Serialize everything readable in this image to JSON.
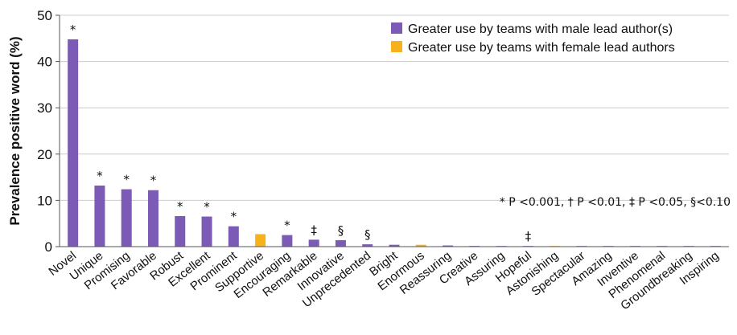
{
  "chart_data": {
    "type": "bar",
    "ylabel": "Prevalence positive word (%)",
    "ylim": [
      0,
      50
    ],
    "yticks": [
      0,
      10,
      20,
      30,
      40,
      50
    ],
    "grid": true,
    "legend_position": "top-right",
    "categories": [
      "Novel",
      "Unique",
      "Promising",
      "Favorable",
      "Robust",
      "Excellent",
      "Prominent",
      "Supportive",
      "Encouraging",
      "Remarkable",
      "Innovative",
      "Unprecedented",
      "Bright",
      "Enormous",
      "Reassuring",
      "Creative",
      "Assuring",
      "Hopeful",
      "Astonishing",
      "Spectacular",
      "Amazing",
      "Inventive",
      "Phenomenal",
      "Groundbreaking",
      "Inspiring"
    ],
    "values": [
      44.8,
      13.2,
      12.4,
      12.2,
      6.6,
      6.5,
      4.4,
      2.7,
      2.5,
      1.5,
      1.4,
      0.5,
      0.4,
      0.4,
      0.25,
      0.15,
      0.12,
      0.1,
      0.1,
      0.08,
      0.06,
      0.05,
      0.04,
      0.03,
      0.02
    ],
    "group": [
      "male",
      "male",
      "male",
      "male",
      "male",
      "male",
      "male",
      "female",
      "male",
      "male",
      "male",
      "male",
      "male",
      "female",
      "male",
      "male",
      "male",
      "male",
      "female",
      "male",
      "male",
      "male",
      "male",
      "male",
      "male"
    ],
    "significance": [
      "*",
      "*",
      "*",
      "*",
      "*",
      "*",
      "*",
      "",
      "*",
      "‡",
      "§",
      "§",
      "",
      "",
      "",
      "",
      "",
      "‡",
      "",
      "",
      "",
      "",
      "",
      "",
      ""
    ],
    "series": [
      {
        "key": "male",
        "name": "Greater use by teams with male lead author(s)",
        "color": "#7b5bb5"
      },
      {
        "key": "female",
        "name": "Greater use by teams with female lead authors",
        "color": "#f7b21b"
      }
    ],
    "annotation": "* P <0.001, † P <0.01, ‡ P <0.05, §<0.10",
    "colors": {
      "grid": "#cccccc",
      "axis": "#555555"
    }
  }
}
